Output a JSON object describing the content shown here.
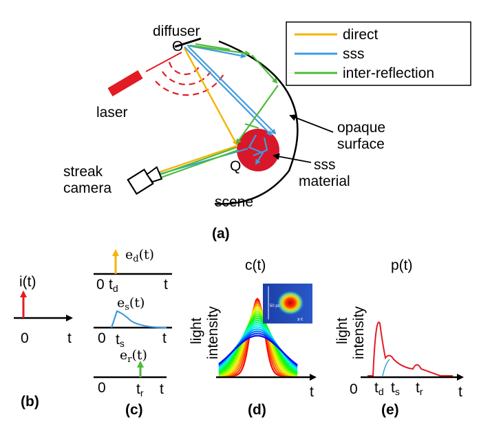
{
  "colors": {
    "direct": "#f5b400",
    "sss": "#3d9be0",
    "inter_reflection": "#4cbb3a",
    "laser": "#e31b23",
    "material": "#d9172a",
    "axis": "#000000"
  },
  "legend": {
    "items": [
      {
        "label": "direct",
        "color": "#f5b400"
      },
      {
        "label": "sss",
        "color": "#3d9be0"
      },
      {
        "label": "inter-reflection",
        "color": "#4cbb3a"
      }
    ]
  },
  "scene": {
    "diffuser": "diffuser",
    "point_o": "O",
    "point_q": "Q",
    "laser": "laser",
    "opaque_line1": "opaque",
    "opaque_line2": "surface",
    "sss_line1": "sss",
    "sss_line2": "material",
    "camera_line1": "streak",
    "camera_line2": "camera",
    "scene_label": "scene",
    "caption": "(a)"
  },
  "panel_b": {
    "func": "i(t)",
    "zero": "0",
    "t": "t",
    "caption": "(b)"
  },
  "panel_c": {
    "ed_base": "e",
    "ed_sub": "d",
    "ed_arg": "(t)",
    "es_base": "e",
    "es_sub": "s",
    "es_arg": "(t)",
    "er_base": "e",
    "er_sub": "r",
    "er_arg": "(t)",
    "zero": "0",
    "td_base": "t",
    "td_sub": "d",
    "ts_base": "t",
    "ts_sub": "s",
    "tr_base": "t",
    "tr_sub": "r",
    "t": "t",
    "caption": "(c)"
  },
  "panel_d": {
    "title": "c(t)",
    "ylabel_1": "light",
    "ylabel_2": "intensity",
    "t": "t",
    "inset_scale": "50 ps",
    "inset_axes": "x-t",
    "caption": "(d)"
  },
  "panel_e": {
    "title": "p(t)",
    "ylabel_1": "light",
    "ylabel_2": "intensity",
    "zero": "0",
    "td_base": "t",
    "td_sub": "d",
    "ts_base": "t",
    "ts_sub": "s",
    "tr_base": "t",
    "tr_sub": "r",
    "t": "t",
    "caption": "(e)"
  }
}
